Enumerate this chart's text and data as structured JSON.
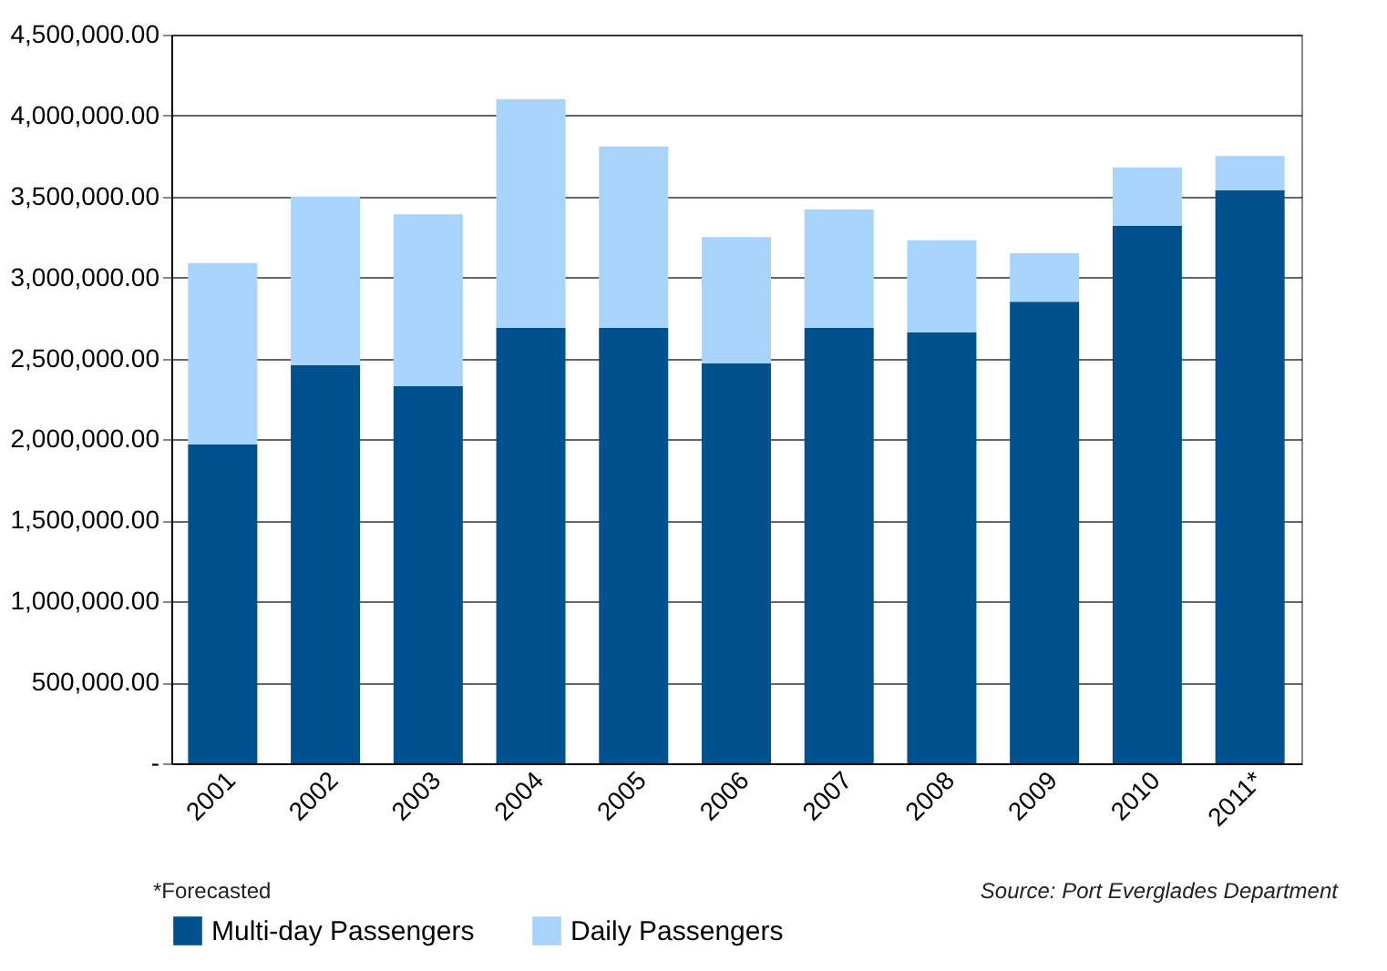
{
  "chart_data": {
    "type": "bar",
    "stacked": true,
    "categories": [
      "2001",
      "2002",
      "2003",
      "2004",
      "2005",
      "2006",
      "2007",
      "2008",
      "2009",
      "2010",
      "2011*"
    ],
    "series": [
      {
        "name": "Multi-day Passengers",
        "color": "#00528f",
        "values": [
          1970000,
          2460000,
          2330000,
          2690000,
          2690000,
          2470000,
          2690000,
          2660000,
          2850000,
          3320000,
          3540000
        ]
      },
      {
        "name": "Daily Passengers",
        "color": "#a8d4fc",
        "values": [
          1120000,
          1040000,
          1060000,
          1410000,
          1120000,
          780000,
          730000,
          570000,
          300000,
          360000,
          210000
        ]
      }
    ],
    "ylim": [
      0,
      4500000
    ],
    "yticks": [
      {
        "value": 0,
        "label": "-"
      },
      {
        "value": 500000,
        "label": "500,000.00"
      },
      {
        "value": 1000000,
        "label": "1,000,000.00"
      },
      {
        "value": 1500000,
        "label": "1,500,000.00"
      },
      {
        "value": 2000000,
        "label": "2,000,000.00"
      },
      {
        "value": 2500000,
        "label": "2,500,000.00"
      },
      {
        "value": 3000000,
        "label": "3,000,000.00"
      },
      {
        "value": 3500000,
        "label": "3,500,000.00"
      },
      {
        "value": 4000000,
        "label": "4,000,000.00"
      },
      {
        "value": 4500000,
        "label": "4,500,000.00"
      }
    ],
    "grid": "y",
    "legend": "bottom",
    "annotations": [
      "*Forecasted",
      "Source: Port Everglades Department"
    ]
  }
}
